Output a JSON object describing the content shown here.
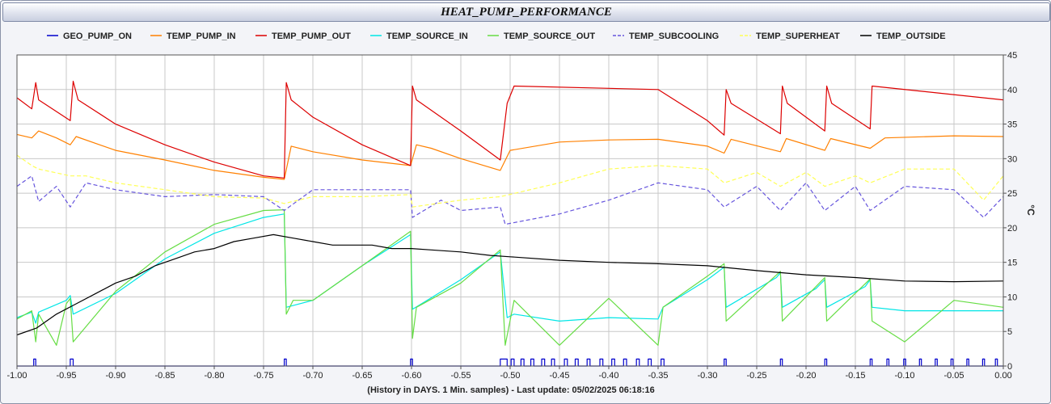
{
  "chart_data": {
    "type": "line",
    "title": "HEAT_PUMP_PERFORMANCE",
    "xlabel": "(History in DAYS. 1 Min. samples) - Last update: 05/02/2025 06:18:16",
    "ylabel": "°C",
    "xlim": [
      -1.0,
      0.0
    ],
    "ylim": [
      0,
      45
    ],
    "x_ticks": [
      "-1.00",
      "-0.95",
      "-0.90",
      "-0.85",
      "-0.80",
      "-0.75",
      "-0.70",
      "-0.65",
      "-0.60",
      "-0.55",
      "-0.50",
      "-0.45",
      "-0.40",
      "-0.35",
      "-0.30",
      "-0.25",
      "-0.20",
      "-0.15",
      "-0.10",
      "-0.05",
      "0.00"
    ],
    "y_ticks": [
      "0",
      "5",
      "10",
      "15",
      "20",
      "25",
      "30",
      "35",
      "40",
      "45"
    ],
    "grid": true,
    "legend_position": "top",
    "series": [
      {
        "name": "GEO_PUMP_ON",
        "color": "#0000cc",
        "dash": "solid",
        "on_intervals": [
          [
            -0.983,
            -0.981
          ],
          [
            -0.946,
            -0.943
          ],
          [
            -0.729,
            -0.727
          ],
          [
            -0.601,
            -0.599
          ],
          [
            -0.51,
            -0.503
          ],
          [
            -0.499,
            -0.496
          ],
          [
            -0.489,
            -0.486
          ],
          [
            -0.479,
            -0.476
          ],
          [
            -0.468,
            -0.465
          ],
          [
            -0.458,
            -0.455
          ],
          [
            -0.445,
            -0.442
          ],
          [
            -0.434,
            -0.431
          ],
          [
            -0.422,
            -0.419
          ],
          [
            -0.409,
            -0.406
          ],
          [
            -0.397,
            -0.394
          ],
          [
            -0.385,
            -0.382
          ],
          [
            -0.372,
            -0.369
          ],
          [
            -0.36,
            -0.357
          ],
          [
            -0.347,
            -0.344
          ],
          [
            -0.283,
            -0.281
          ],
          [
            -0.226,
            -0.224
          ],
          [
            -0.181,
            -0.179
          ],
          [
            -0.135,
            -0.133
          ],
          [
            -0.118,
            -0.116
          ],
          [
            -0.101,
            -0.099
          ],
          [
            -0.085,
            -0.083
          ],
          [
            -0.069,
            -0.067
          ],
          [
            -0.053,
            -0.051
          ],
          [
            -0.037,
            -0.035
          ],
          [
            -0.021,
            -0.019
          ],
          [
            -0.008,
            -0.006
          ]
        ],
        "on_value": 1,
        "off_value": 0
      },
      {
        "name": "TEMP_PUMP_IN",
        "color": "#ff8000",
        "dash": "solid",
        "points": [
          [
            -1.0,
            33.5
          ],
          [
            -0.985,
            33.0
          ],
          [
            -0.978,
            34.0
          ],
          [
            -0.96,
            33.0
          ],
          [
            -0.946,
            32.0
          ],
          [
            -0.94,
            33.2
          ],
          [
            -0.9,
            31.2
          ],
          [
            -0.85,
            29.8
          ],
          [
            -0.8,
            28.3
          ],
          [
            -0.75,
            27.3
          ],
          [
            -0.729,
            27.0
          ],
          [
            -0.722,
            31.8
          ],
          [
            -0.7,
            31.0
          ],
          [
            -0.65,
            29.8
          ],
          [
            -0.601,
            29.0
          ],
          [
            -0.595,
            32.0
          ],
          [
            -0.58,
            31.5
          ],
          [
            -0.55,
            30.0
          ],
          [
            -0.51,
            28.3
          ],
          [
            -0.5,
            31.2
          ],
          [
            -0.45,
            32.4
          ],
          [
            -0.4,
            32.7
          ],
          [
            -0.35,
            32.8
          ],
          [
            -0.3,
            31.8
          ],
          [
            -0.283,
            30.8
          ],
          [
            -0.276,
            32.8
          ],
          [
            -0.226,
            31.0
          ],
          [
            -0.22,
            32.9
          ],
          [
            -0.181,
            31.2
          ],
          [
            -0.175,
            32.9
          ],
          [
            -0.135,
            31.5
          ],
          [
            -0.12,
            33.0
          ],
          [
            -0.05,
            33.3
          ],
          [
            0.0,
            33.2
          ]
        ]
      },
      {
        "name": "TEMP_PUMP_OUT",
        "color": "#dd0000",
        "dash": "solid",
        "points": [
          [
            -1.0,
            38.8
          ],
          [
            -0.985,
            37.2
          ],
          [
            -0.981,
            41.0
          ],
          [
            -0.978,
            38.5
          ],
          [
            -0.946,
            35.5
          ],
          [
            -0.943,
            41.2
          ],
          [
            -0.938,
            38.5
          ],
          [
            -0.9,
            35.0
          ],
          [
            -0.85,
            32.0
          ],
          [
            -0.8,
            29.5
          ],
          [
            -0.75,
            27.5
          ],
          [
            -0.729,
            27.2
          ],
          [
            -0.727,
            41.0
          ],
          [
            -0.722,
            38.5
          ],
          [
            -0.7,
            36.0
          ],
          [
            -0.65,
            32.0
          ],
          [
            -0.601,
            29.0
          ],
          [
            -0.599,
            40.5
          ],
          [
            -0.595,
            38.5
          ],
          [
            -0.55,
            34.0
          ],
          [
            -0.51,
            29.8
          ],
          [
            -0.503,
            38.0
          ],
          [
            -0.496,
            40.5
          ],
          [
            -0.35,
            40.0
          ],
          [
            -0.3,
            35.5
          ],
          [
            -0.283,
            33.4
          ],
          [
            -0.281,
            40.0
          ],
          [
            -0.276,
            38.0
          ],
          [
            -0.226,
            33.6
          ],
          [
            -0.224,
            40.5
          ],
          [
            -0.219,
            38.0
          ],
          [
            -0.181,
            34.0
          ],
          [
            -0.179,
            40.5
          ],
          [
            -0.174,
            38.0
          ],
          [
            -0.135,
            34.3
          ],
          [
            -0.133,
            40.5
          ],
          [
            0.0,
            38.5
          ]
        ]
      },
      {
        "name": "TEMP_SOURCE_IN",
        "color": "#00e6e6",
        "dash": "solid",
        "points": [
          [
            -1.0,
            7.0
          ],
          [
            -0.985,
            7.8
          ],
          [
            -0.981,
            6.2
          ],
          [
            -0.978,
            7.8
          ],
          [
            -0.95,
            9.5
          ],
          [
            -0.946,
            10.2
          ],
          [
            -0.943,
            7.5
          ],
          [
            -0.9,
            10.5
          ],
          [
            -0.85,
            15.5
          ],
          [
            -0.8,
            19.2
          ],
          [
            -0.75,
            21.5
          ],
          [
            -0.729,
            22.0
          ],
          [
            -0.727,
            8.5
          ],
          [
            -0.7,
            9.5
          ],
          [
            -0.65,
            14.5
          ],
          [
            -0.601,
            19.0
          ],
          [
            -0.599,
            8.2
          ],
          [
            -0.55,
            12.5
          ],
          [
            -0.51,
            16.5
          ],
          [
            -0.503,
            7.0
          ],
          [
            -0.496,
            7.5
          ],
          [
            -0.45,
            6.5
          ],
          [
            -0.4,
            7.0
          ],
          [
            -0.35,
            6.8
          ],
          [
            -0.345,
            8.5
          ],
          [
            -0.3,
            12.5
          ],
          [
            -0.283,
            14.3
          ],
          [
            -0.281,
            8.5
          ],
          [
            -0.23,
            12.8
          ],
          [
            -0.226,
            13.5
          ],
          [
            -0.224,
            8.5
          ],
          [
            -0.19,
            11.2
          ],
          [
            -0.181,
            12.5
          ],
          [
            -0.179,
            8.5
          ],
          [
            -0.14,
            11.5
          ],
          [
            -0.135,
            12.5
          ],
          [
            -0.133,
            8.5
          ],
          [
            -0.1,
            8.0
          ],
          [
            -0.05,
            8.0
          ],
          [
            0.0,
            8.0
          ]
        ]
      },
      {
        "name": "TEMP_SOURCE_OUT",
        "color": "#66dd44",
        "dash": "solid",
        "points": [
          [
            -1.0,
            6.8
          ],
          [
            -0.985,
            8.0
          ],
          [
            -0.981,
            3.5
          ],
          [
            -0.978,
            7.5
          ],
          [
            -0.96,
            3.0
          ],
          [
            -0.95,
            9.0
          ],
          [
            -0.946,
            9.8
          ],
          [
            -0.943,
            3.5
          ],
          [
            -0.9,
            10.8
          ],
          [
            -0.85,
            16.5
          ],
          [
            -0.8,
            20.5
          ],
          [
            -0.75,
            22.5
          ],
          [
            -0.729,
            22.6
          ],
          [
            -0.727,
            7.5
          ],
          [
            -0.72,
            9.5
          ],
          [
            -0.7,
            9.5
          ],
          [
            -0.65,
            14.5
          ],
          [
            -0.601,
            19.5
          ],
          [
            -0.599,
            4.0
          ],
          [
            -0.595,
            8.5
          ],
          [
            -0.55,
            12.0
          ],
          [
            -0.51,
            16.8
          ],
          [
            -0.505,
            3.0
          ],
          [
            -0.496,
            9.5
          ],
          [
            -0.45,
            3.0
          ],
          [
            -0.4,
            9.8
          ],
          [
            -0.35,
            3.0
          ],
          [
            -0.345,
            8.5
          ],
          [
            -0.3,
            13.0
          ],
          [
            -0.283,
            14.8
          ],
          [
            -0.281,
            6.5
          ],
          [
            -0.226,
            13.7
          ],
          [
            -0.224,
            6.5
          ],
          [
            -0.181,
            12.8
          ],
          [
            -0.179,
            6.5
          ],
          [
            -0.135,
            12.6
          ],
          [
            -0.133,
            6.5
          ],
          [
            -0.1,
            3.5
          ],
          [
            -0.05,
            9.5
          ],
          [
            0.0,
            8.5
          ]
        ]
      },
      {
        "name": "TEMP_SUBCOOLING",
        "color": "#6655dd",
        "dash": "dashed",
        "points": [
          [
            -1.0,
            26.0
          ],
          [
            -0.985,
            27.5
          ],
          [
            -0.978,
            23.8
          ],
          [
            -0.96,
            26.0
          ],
          [
            -0.946,
            23.0
          ],
          [
            -0.93,
            26.5
          ],
          [
            -0.9,
            25.5
          ],
          [
            -0.85,
            24.5
          ],
          [
            -0.8,
            24.8
          ],
          [
            -0.75,
            24.5
          ],
          [
            -0.729,
            22.5
          ],
          [
            -0.7,
            25.5
          ],
          [
            -0.65,
            25.5
          ],
          [
            -0.601,
            25.5
          ],
          [
            -0.599,
            21.5
          ],
          [
            -0.57,
            24.0
          ],
          [
            -0.55,
            22.5
          ],
          [
            -0.51,
            23.0
          ],
          [
            -0.505,
            20.5
          ],
          [
            -0.45,
            22.0
          ],
          [
            -0.4,
            24.0
          ],
          [
            -0.35,
            26.5
          ],
          [
            -0.3,
            25.5
          ],
          [
            -0.283,
            23.0
          ],
          [
            -0.25,
            26.0
          ],
          [
            -0.226,
            22.5
          ],
          [
            -0.2,
            26.5
          ],
          [
            -0.181,
            22.5
          ],
          [
            -0.15,
            26.0
          ],
          [
            -0.135,
            22.5
          ],
          [
            -0.1,
            26.0
          ],
          [
            -0.05,
            25.5
          ],
          [
            -0.02,
            21.5
          ],
          [
            0.0,
            24.5
          ]
        ]
      },
      {
        "name": "TEMP_SUPERHEAT",
        "color": "#ffff55",
        "dash": "dashed",
        "points": [
          [
            -1.0,
            30.5
          ],
          [
            -0.985,
            29.0
          ],
          [
            -0.978,
            28.5
          ],
          [
            -0.946,
            27.5
          ],
          [
            -0.93,
            27.5
          ],
          [
            -0.9,
            26.5
          ],
          [
            -0.85,
            25.5
          ],
          [
            -0.8,
            24.5
          ],
          [
            -0.75,
            24.3
          ],
          [
            -0.729,
            23.5
          ],
          [
            -0.7,
            24.5
          ],
          [
            -0.65,
            24.5
          ],
          [
            -0.601,
            24.8
          ],
          [
            -0.599,
            23.0
          ],
          [
            -0.55,
            24.0
          ],
          [
            -0.51,
            24.5
          ],
          [
            -0.45,
            26.5
          ],
          [
            -0.4,
            28.5
          ],
          [
            -0.35,
            29.0
          ],
          [
            -0.3,
            28.5
          ],
          [
            -0.283,
            26.5
          ],
          [
            -0.25,
            28.0
          ],
          [
            -0.226,
            26.0
          ],
          [
            -0.2,
            28.0
          ],
          [
            -0.181,
            26.0
          ],
          [
            -0.15,
            27.5
          ],
          [
            -0.135,
            26.5
          ],
          [
            -0.1,
            28.5
          ],
          [
            -0.05,
            28.5
          ],
          [
            -0.02,
            24.0
          ],
          [
            0.0,
            27.5
          ]
        ]
      },
      {
        "name": "TEMP_OUTSIDE",
        "color": "#000000",
        "dash": "solid",
        "points": [
          [
            -1.0,
            4.5
          ],
          [
            -0.98,
            5.5
          ],
          [
            -0.96,
            7.5
          ],
          [
            -0.94,
            9.0
          ],
          [
            -0.92,
            10.5
          ],
          [
            -0.9,
            12.0
          ],
          [
            -0.88,
            13.0
          ],
          [
            -0.86,
            14.5
          ],
          [
            -0.84,
            15.5
          ],
          [
            -0.82,
            16.5
          ],
          [
            -0.8,
            17.0
          ],
          [
            -0.78,
            18.0
          ],
          [
            -0.76,
            18.5
          ],
          [
            -0.74,
            19.0
          ],
          [
            -0.72,
            18.5
          ],
          [
            -0.7,
            18.0
          ],
          [
            -0.68,
            17.5
          ],
          [
            -0.66,
            17.5
          ],
          [
            -0.64,
            17.5
          ],
          [
            -0.62,
            17.0
          ],
          [
            -0.6,
            17.0
          ],
          [
            -0.58,
            16.8
          ],
          [
            -0.55,
            16.5
          ],
          [
            -0.52,
            16.0
          ],
          [
            -0.5,
            15.8
          ],
          [
            -0.45,
            15.3
          ],
          [
            -0.4,
            15.0
          ],
          [
            -0.35,
            14.8
          ],
          [
            -0.3,
            14.5
          ],
          [
            -0.25,
            13.8
          ],
          [
            -0.2,
            13.2
          ],
          [
            -0.15,
            12.8
          ],
          [
            -0.1,
            12.3
          ],
          [
            -0.05,
            12.2
          ],
          [
            0.0,
            12.3
          ]
        ]
      }
    ]
  }
}
